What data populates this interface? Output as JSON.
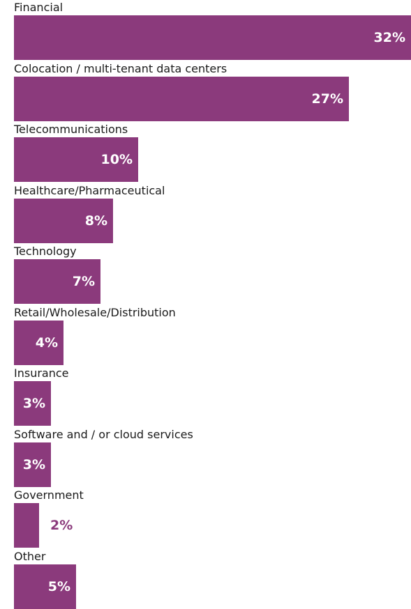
{
  "chart_data": {
    "type": "bar",
    "orientation": "horizontal",
    "categories": [
      "Financial",
      "Colocation / multi-tenant data centers",
      "Telecommunications",
      "Healthcare/Pharmaceutical",
      "Technology",
      "Retail/Wholesale/Distribution",
      "Insurance",
      "Software and / or cloud services",
      "Government",
      "Other"
    ],
    "values": [
      32,
      27,
      10,
      8,
      7,
      4,
      3,
      3,
      2,
      5
    ],
    "value_labels": [
      "32%",
      "27%",
      "10%",
      "8%",
      "7%",
      "4%",
      "3%",
      "3%",
      "2%",
      "5%"
    ],
    "unit": "%",
    "xlim": [
      0,
      32
    ],
    "grid": false,
    "legend": "none",
    "bar_color": "#8b3a7c",
    "label_inside_color": "#ffffff",
    "label_outside_color": "#8b3a7c"
  }
}
